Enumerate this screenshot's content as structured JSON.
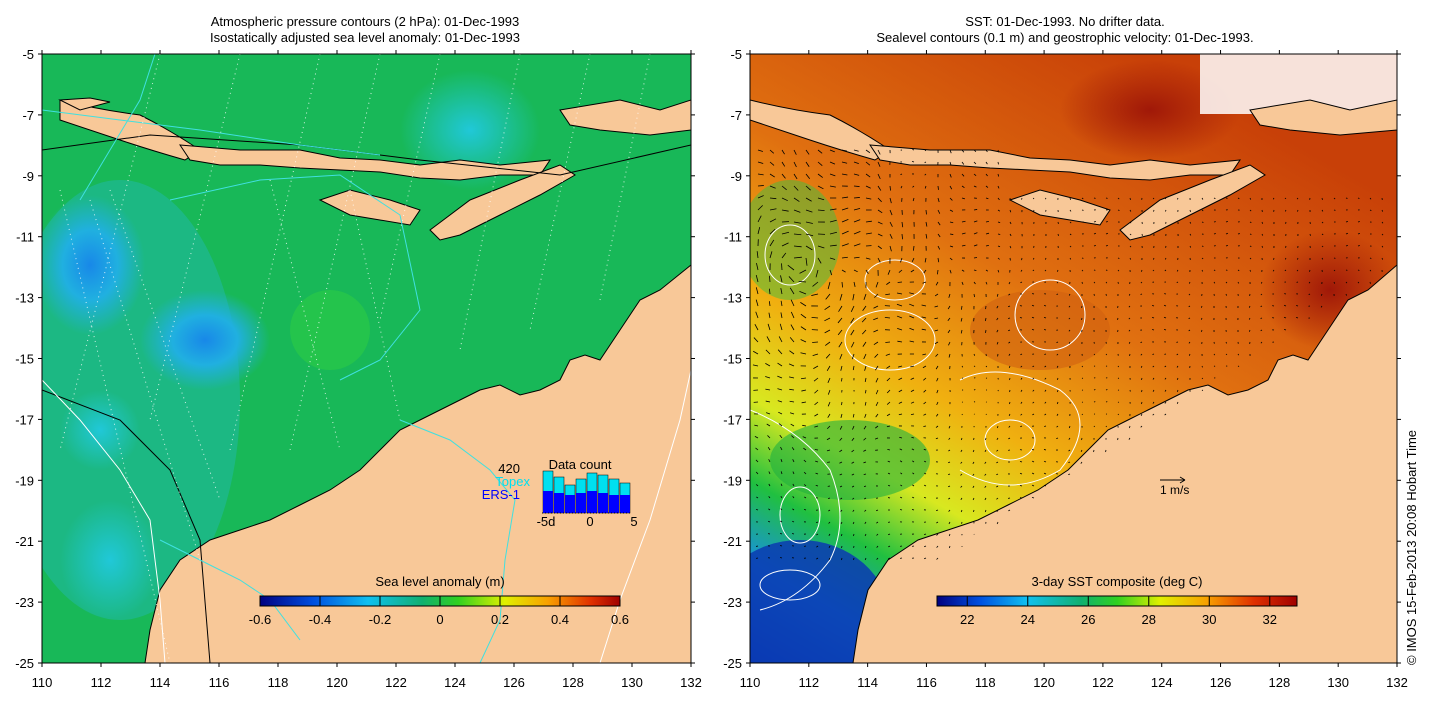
{
  "left_panel": {
    "title_line1": "Atmospheric pressure contours (2 hPa): 01-Dec-1993",
    "title_line2": "Isostatically adjusted sea level anomaly: 01-Dec-1993",
    "colorbar_label": "Sea level anomaly (m)",
    "colorbar_ticks": [
      "-0.6",
      "-0.4",
      "-0.2",
      "0",
      "0.2",
      "0.4",
      "0.6"
    ],
    "inset": {
      "title": "Data count",
      "total": "420",
      "sat1": "Topex",
      "sat2": "ERS-1",
      "x_ticks": [
        "-5d",
        "0",
        "5"
      ],
      "topex_color": "#00e0f0",
      "ers_color": "#0000ff"
    }
  },
  "right_panel": {
    "title_line1": "SST: 01-Dec-1993. No drifter data.",
    "title_line2": "Sealevel contours (0.1 m) and geostrophic velocity: 01-Dec-1993.",
    "colorbar_label": "3-day SST composite (deg C)",
    "colorbar_ticks": [
      "22",
      "24",
      "26",
      "28",
      "30",
      "32"
    ],
    "velocity_scale_label": "1 m/s"
  },
  "axes": {
    "lat_ticks": [
      "-5",
      "-7",
      "-9",
      "-11",
      "-13",
      "-15",
      "-17",
      "-19",
      "-21",
      "-23",
      "-25"
    ],
    "lon_ticks": [
      "110",
      "112",
      "114",
      "116",
      "118",
      "120",
      "122",
      "124",
      "126",
      "128",
      "130",
      "132"
    ]
  },
  "credit": "© IMOS 15-Feb-2013 20:08 Hobart Time",
  "colors": {
    "land": "#f8c898",
    "ocean_anomaly_base": "#18b858",
    "sst_warm": "#e06010",
    "sst_cool": "#1060d0"
  }
}
